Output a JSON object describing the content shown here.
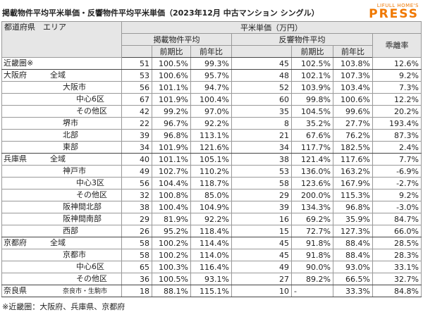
{
  "title": "掲載物件平均平米単価・反響物件平均平米単価（2023年12月 中古マンション シングル）",
  "logo": {
    "line1": "LIFULL HOME'S",
    "line2": "PRESS"
  },
  "table": {
    "header": {
      "area": "都道府県　エリア",
      "unit": "平米単価（万円）",
      "listed": "掲載物件平均",
      "response": "反響物件平均",
      "gap": "乖離率",
      "listed_prev": "前期比",
      "listed_year": "前年比",
      "response_prev": "前期比",
      "response_year": "前年比"
    },
    "rows": [
      {
        "pref": "近畿圏※",
        "cells": [
          "51",
          "100.5%",
          "99.3%",
          "45",
          "102.5%",
          "103.8%",
          "12.6%"
        ]
      },
      {
        "pref": "大阪府",
        "area": "全域",
        "cells": [
          "53",
          "100.6%",
          "95.7%",
          "48",
          "102.1%",
          "107.3%",
          "9.2%"
        ]
      },
      {
        "city": "大阪市",
        "cells": [
          "56",
          "101.1%",
          "94.7%",
          "52",
          "103.9%",
          "103.4%",
          "7.3%"
        ]
      },
      {
        "district": "中心6区",
        "cells": [
          "67",
          "101.9%",
          "100.4%",
          "60",
          "99.8%",
          "100.6%",
          "12.2%"
        ]
      },
      {
        "district": "その他区",
        "cells": [
          "42",
          "99.2%",
          "97.0%",
          "35",
          "104.5%",
          "99.6%",
          "20.2%"
        ]
      },
      {
        "city": "堺市",
        "cells": [
          "22",
          "96.7%",
          "92.2%",
          "8",
          "35.2%",
          "27.7%",
          "193.4%"
        ]
      },
      {
        "city": "北部",
        "cells": [
          "39",
          "96.8%",
          "113.1%",
          "21",
          "67.6%",
          "76.2%",
          "87.3%"
        ]
      },
      {
        "city": "東部",
        "cells": [
          "34",
          "101.9%",
          "121.6%",
          "34",
          "117.7%",
          "182.5%",
          "2.4%"
        ]
      },
      {
        "pref": "兵庫県",
        "area": "全域",
        "cells": [
          "40",
          "101.1%",
          "105.1%",
          "38",
          "121.4%",
          "117.6%",
          "7.7%"
        ]
      },
      {
        "city": "神戸市",
        "cells": [
          "49",
          "102.7%",
          "110.2%",
          "53",
          "136.0%",
          "163.2%",
          "-6.9%"
        ]
      },
      {
        "district": "中心3区",
        "cells": [
          "56",
          "104.4%",
          "118.7%",
          "58",
          "123.6%",
          "167.9%",
          "-2.7%"
        ]
      },
      {
        "district": "その他区",
        "cells": [
          "32",
          "100.8%",
          "85.0%",
          "29",
          "200.0%",
          "115.3%",
          "9.2%"
        ]
      },
      {
        "city": "阪神間北部",
        "cells": [
          "38",
          "100.4%",
          "104.9%",
          "39",
          "134.3%",
          "96.8%",
          "-3.0%"
        ]
      },
      {
        "city": "阪神間南部",
        "cells": [
          "29",
          "81.9%",
          "92.2%",
          "16",
          "69.2%",
          "35.9%",
          "84.7%"
        ]
      },
      {
        "city": "西部",
        "cells": [
          "26",
          "95.2%",
          "118.4%",
          "15",
          "72.7%",
          "127.3%",
          "66.0%"
        ]
      },
      {
        "pref": "京都府",
        "area": "全域",
        "cells": [
          "58",
          "100.2%",
          "114.4%",
          "45",
          "91.8%",
          "88.4%",
          "28.5%"
        ]
      },
      {
        "city": "京都市",
        "cells": [
          "58",
          "100.2%",
          "114.0%",
          "45",
          "91.8%",
          "88.4%",
          "28.3%"
        ]
      },
      {
        "district": "中心6区",
        "cells": [
          "65",
          "100.3%",
          "116.4%",
          "49",
          "90.0%",
          "93.0%",
          "33.1%"
        ]
      },
      {
        "district": "その他区",
        "cells": [
          "36",
          "100.5%",
          "93.1%",
          "27",
          "89.2%",
          "66.5%",
          "32.7%"
        ]
      },
      {
        "pref": "奈良県",
        "note": "奈良市・生駒市",
        "cells": [
          "18",
          "88.1%",
          "115.1%",
          "10",
          "-",
          "33.3%",
          "84.8%"
        ]
      }
    ]
  },
  "footnote": "※近畿圏：大阪府、兵庫県、京都府"
}
